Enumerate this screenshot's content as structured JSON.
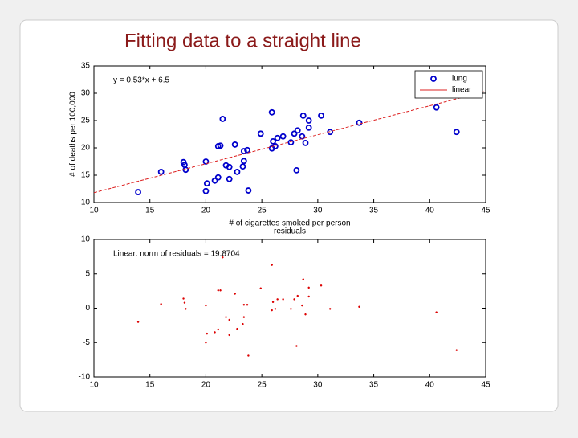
{
  "slide_title": "Fitting data to a straight line",
  "chart_data": [
    {
      "type": "scatter",
      "annotation": "y = 0.53*x + 6.5",
      "x_label": "# of cigarettes smoked per person",
      "y_label": "# of deaths per 100,000",
      "xlim": [
        10,
        45
      ],
      "ylim": [
        10,
        35
      ],
      "xticks": [
        10,
        15,
        20,
        25,
        30,
        35,
        40,
        45
      ],
      "yticks": [
        10,
        15,
        20,
        25,
        30,
        35
      ],
      "legend": "top-right",
      "series": [
        {
          "name": "lung",
          "color": "#0000cc",
          "marker": "circle",
          "x": [
            13.95,
            16.0,
            18.0,
            18.1,
            18.2,
            20.0,
            20.1,
            20.0,
            20.8,
            21.1,
            21.1,
            21.3,
            21.5,
            21.8,
            22.1,
            22.1,
            22.6,
            22.8,
            23.3,
            23.4,
            23.4,
            23.7,
            23.8,
            24.9,
            25.9,
            25.9,
            26.0,
            26.2,
            26.4,
            26.9,
            27.6,
            27.9,
            28.2,
            28.1,
            28.7,
            28.6,
            28.9,
            29.2,
            29.2,
            30.3,
            31.1,
            33.7,
            40.6,
            42.4
          ],
          "values": [
            11.9,
            15.6,
            17.4,
            16.9,
            16.0,
            17.5,
            13.5,
            12.1,
            14.0,
            14.6,
            20.3,
            20.4,
            25.3,
            16.8,
            16.5,
            14.3,
            20.6,
            15.6,
            16.6,
            17.6,
            19.4,
            19.6,
            12.2,
            22.6,
            26.5,
            19.9,
            21.2,
            20.3,
            21.8,
            22.1,
            21.0,
            22.6,
            23.2,
            15.9,
            25.9,
            22.1,
            20.9,
            25.0,
            23.7,
            25.9,
            22.9,
            24.6,
            27.4,
            22.9
          ]
        },
        {
          "name": "linear",
          "color": "#dd2222",
          "marker": "line",
          "x": [
            10,
            45
          ],
          "values": [
            11.8,
            30.35
          ]
        }
      ]
    },
    {
      "type": "scatter",
      "title": "residuals",
      "annotation": "Linear: norm of residuals = 19.8704",
      "xlim": [
        10,
        45
      ],
      "ylim": [
        -10,
        10
      ],
      "xticks": [
        10,
        15,
        20,
        25,
        30,
        35,
        40,
        45
      ],
      "yticks": [
        -10,
        -5,
        0,
        5,
        10
      ],
      "series": [
        {
          "color": "#dd0000",
          "marker": "dot",
          "x": [
            13.95,
            16.0,
            18.0,
            18.1,
            18.2,
            20.0,
            20.1,
            20.0,
            20.8,
            21.1,
            21.1,
            21.3,
            21.5,
            21.8,
            22.1,
            22.1,
            22.6,
            22.8,
            23.3,
            23.4,
            23.4,
            23.7,
            23.8,
            24.9,
            25.9,
            25.9,
            26.0,
            26.2,
            26.4,
            26.9,
            27.6,
            27.9,
            28.2,
            28.1,
            28.7,
            28.6,
            28.9,
            29.2,
            29.2,
            30.3,
            31.1,
            33.7,
            40.6,
            42.4
          ],
          "values": [
            -2.0,
            0.6,
            1.4,
            0.8,
            -0.1,
            0.4,
            -3.7,
            -5.0,
            -3.5,
            -3.1,
            2.6,
            2.6,
            7.4,
            -1.3,
            -1.7,
            -3.9,
            2.1,
            -3.0,
            -2.3,
            -1.3,
            0.5,
            0.5,
            -6.9,
            2.9,
            6.3,
            -0.3,
            0.9,
            -0.1,
            1.3,
            1.3,
            -0.1,
            1.3,
            1.8,
            -5.5,
            4.2,
            0.4,
            -0.9,
            3.0,
            1.7,
            3.3,
            -0.1,
            0.2,
            -0.6,
            -6.1
          ]
        }
      ]
    }
  ]
}
